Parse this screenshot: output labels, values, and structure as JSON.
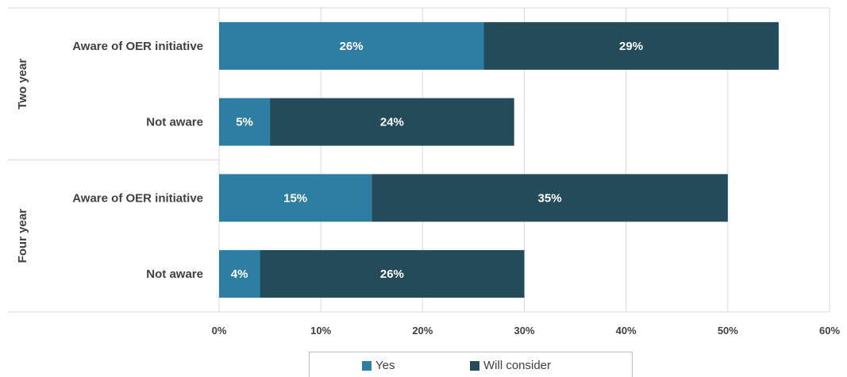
{
  "chart_data": {
    "type": "bar",
    "orientation": "horizontal",
    "stacked": true,
    "groups": [
      {
        "label": "Two year",
        "categories": [
          "Aware of OER initiative",
          "Not aware"
        ]
      },
      {
        "label": "Four year",
        "categories": [
          "Aware of OER initiative",
          "Not aware"
        ]
      }
    ],
    "series": [
      {
        "name": "Yes",
        "color": "#2e7ea3",
        "values": [
          26,
          5,
          15,
          4
        ],
        "labels": [
          "26%",
          "5%",
          "15%",
          "4%"
        ]
      },
      {
        "name": "Will consider",
        "color": "#234b5a",
        "values": [
          29,
          24,
          35,
          26
        ],
        "labels": [
          "29%",
          "24%",
          "35%",
          "26%"
        ]
      }
    ],
    "xlim": [
      0,
      60
    ],
    "xticks": [
      "0%",
      "10%",
      "20%",
      "30%",
      "40%",
      "50%",
      "60%"
    ],
    "grid": true,
    "legend_position": "bottom"
  }
}
